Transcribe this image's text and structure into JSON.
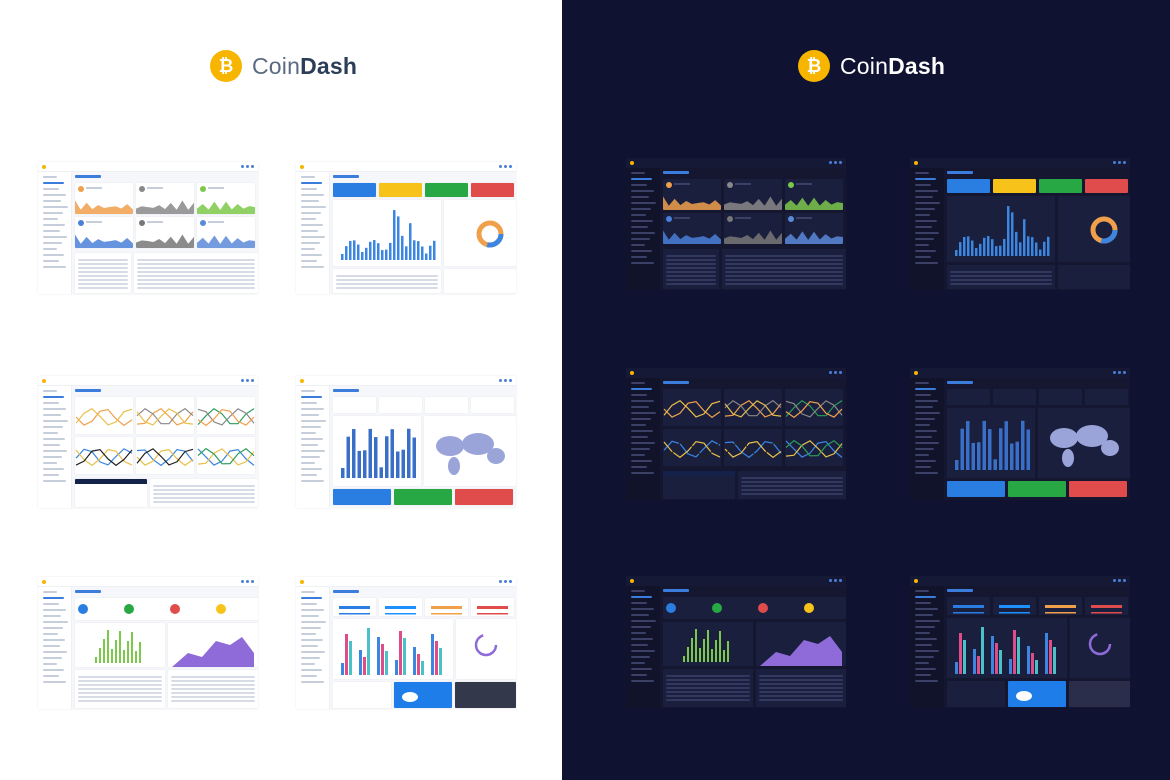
{
  "colors": {
    "coin": "#f7b500",
    "accent_blue": "#3b7ddd",
    "light_bg": "#ffffff",
    "dark_bg": "#0f1230",
    "orange": "#f0a04b",
    "green": "#7cc84a",
    "purple": "#8e6bd8",
    "red": "#e04b4b",
    "yellow": "#f7c21a"
  },
  "light": {
    "brand": {
      "prefix": "Coin",
      "bold": "Dash",
      "coin_glyph": "₿"
    },
    "theme": "light"
  },
  "dark": {
    "brand": {
      "prefix": "Coin",
      "bold": "Dash",
      "coin_glyph": "₿"
    },
    "theme": "dark"
  },
  "thumbnails": [
    {
      "name": "crypto-market-dashboard",
      "layout": "area-cards"
    },
    {
      "name": "stats-bar-dashboard",
      "layout": "stat-bars"
    },
    {
      "name": "line-charts-dashboard",
      "layout": "line-cards"
    },
    {
      "name": "map-dashboard",
      "layout": "map"
    },
    {
      "name": "orders-dashboard",
      "layout": "orders"
    },
    {
      "name": "weather-dashboard",
      "layout": "weather"
    }
  ]
}
